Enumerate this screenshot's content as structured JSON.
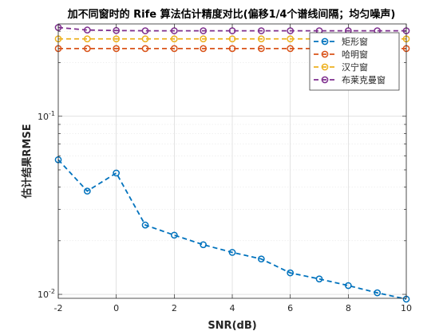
{
  "chart_data": {
    "type": "line",
    "title": "加不同窗时的 Rife 算法估计精度对比(偏移1/4个谱线间隔；均匀噪声)",
    "xlabel": "SNR(dB)",
    "ylabel": "估计结果RMSE",
    "x": [
      -2,
      -1,
      0,
      1,
      2,
      3,
      4,
      5,
      6,
      7,
      8,
      9,
      10
    ],
    "xlim": [
      -2,
      10
    ],
    "ylim": [
      0.0095,
      0.33
    ],
    "yscale": "log",
    "xticks": [
      "-2",
      "0",
      "2",
      "4",
      "6",
      "8",
      "10"
    ],
    "yticks": [
      {
        "value": 0.01,
        "base": "10",
        "exp": "-2"
      },
      {
        "value": 0.1,
        "base": "10",
        "exp": "-1"
      }
    ],
    "grid": true,
    "legend_position": "top-right",
    "series": [
      {
        "name": "矩形窗",
        "color": "#0072BD",
        "values": [
          0.057,
          0.038,
          0.048,
          0.0245,
          0.0215,
          0.019,
          0.0172,
          0.0158,
          0.0132,
          0.0122,
          0.0112,
          0.0102,
          0.0094
        ]
      },
      {
        "name": "哈明窗",
        "color": "#D95319",
        "values": [
          0.24,
          0.24,
          0.24,
          0.24,
          0.24,
          0.24,
          0.24,
          0.24,
          0.24,
          0.24,
          0.24,
          0.24,
          0.24
        ]
      },
      {
        "name": "汉宁窗",
        "color": "#EDB120",
        "values": [
          0.272,
          0.272,
          0.272,
          0.272,
          0.272,
          0.272,
          0.272,
          0.272,
          0.272,
          0.272,
          0.272,
          0.272,
          0.272
        ]
      },
      {
        "name": "布莱克曼窗",
        "color": "#7E2F8E",
        "values": [
          0.315,
          0.305,
          0.303,
          0.302,
          0.302,
          0.302,
          0.302,
          0.302,
          0.302,
          0.302,
          0.302,
          0.302,
          0.302
        ]
      }
    ]
  }
}
